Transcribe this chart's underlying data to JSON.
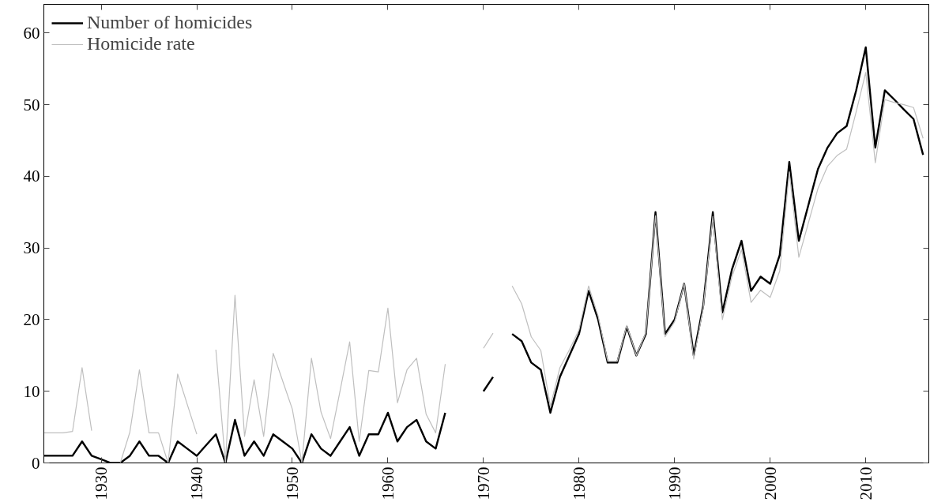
{
  "chart_data": {
    "type": "line",
    "x": [
      1924,
      1925,
      1926,
      1927,
      1928,
      1929,
      1930,
      1931,
      1932,
      1933,
      1934,
      1935,
      1936,
      1937,
      1938,
      1939,
      1940,
      1941,
      1942,
      1943,
      1944,
      1945,
      1946,
      1947,
      1948,
      1949,
      1950,
      1951,
      1952,
      1953,
      1954,
      1955,
      1956,
      1957,
      1958,
      1959,
      1960,
      1961,
      1962,
      1963,
      1964,
      1965,
      1966,
      1967,
      1968,
      1969,
      1970,
      1971,
      1972,
      1973,
      1974,
      1975,
      1976,
      1977,
      1978,
      1979,
      1980,
      1981,
      1982,
      1983,
      1984,
      1985,
      1986,
      1987,
      1988,
      1989,
      1990,
      1991,
      1992,
      1993,
      1994,
      1995,
      1996,
      1997,
      1998,
      1999,
      2000,
      2001,
      2002,
      2003,
      2004,
      2005,
      2006,
      2007,
      2008,
      2009,
      2010,
      2011,
      2012,
      2013,
      2014,
      2015,
      2016
    ],
    "series": [
      {
        "name": "Number of homicides",
        "color": "#000000",
        "values": [
          1,
          1,
          1,
          1,
          3,
          1,
          0.5,
          0,
          0,
          1,
          3,
          1,
          1,
          0,
          3,
          2,
          1,
          2.5,
          4,
          0,
          6,
          1,
          3,
          1,
          4,
          3,
          2,
          0,
          4,
          2,
          1,
          3,
          5,
          1,
          4,
          4,
          7,
          3,
          5,
          6,
          3,
          2,
          7,
          null,
          null,
          null,
          10,
          12,
          null,
          18,
          17,
          14,
          13,
          7,
          12,
          15,
          18,
          24,
          20,
          14,
          14,
          19,
          15,
          18,
          35,
          18,
          20,
          25,
          15,
          22,
          35,
          21,
          27,
          31,
          24,
          26,
          25,
          29,
          42,
          31,
          36,
          41,
          44,
          46,
          47,
          52,
          58,
          44,
          52,
          50.7,
          49.3,
          48,
          43
        ]
      },
      {
        "name": "Homicide rate",
        "color": "#bfbfbf",
        "values": [
          4.2,
          4.2,
          4.2,
          4.4,
          13.3,
          4.5,
          null,
          null,
          0,
          4.3,
          13,
          4.2,
          4.2,
          0,
          12.4,
          8.2,
          4,
          null,
          15.8,
          0,
          23.4,
          3.7,
          11.6,
          3.7,
          15.3,
          11.4,
          7.5,
          0,
          14.6,
          7.1,
          3.4,
          10.1,
          16.9,
          3,
          12.9,
          12.7,
          21.6,
          8.4,
          13,
          14.6,
          6.8,
          4.2,
          13.8,
          null,
          null,
          null,
          16,
          18.1,
          null,
          24.7,
          22.2,
          17.6,
          15.7,
          7.9,
          13.3,
          15.8,
          18.6,
          24.7,
          20.5,
          14.2,
          14.2,
          19.2,
          15,
          18.2,
          34.5,
          17.6,
          19.7,
          25,
          14.5,
          21.7,
          34.4,
          20,
          26,
          29.8,
          22.4,
          24.1,
          23.1,
          26.8,
          40.6,
          28.7,
          33.5,
          38.3,
          41.4,
          42.9,
          43.8,
          49,
          54.5,
          41.9,
          50.7,
          50.3,
          50,
          49.6,
          45.3
        ]
      }
    ],
    "xlim": [
      1924,
      2016.6
    ],
    "xticks": [
      1930,
      1940,
      1950,
      1960,
      1970,
      1980,
      1990,
      2000,
      2010
    ],
    "ylim": [
      0,
      64
    ],
    "yticks": [
      0,
      10,
      20,
      30,
      40,
      50,
      60
    ],
    "grid": false,
    "legend": "top left",
    "marker": "none",
    "line_style": "solid"
  }
}
